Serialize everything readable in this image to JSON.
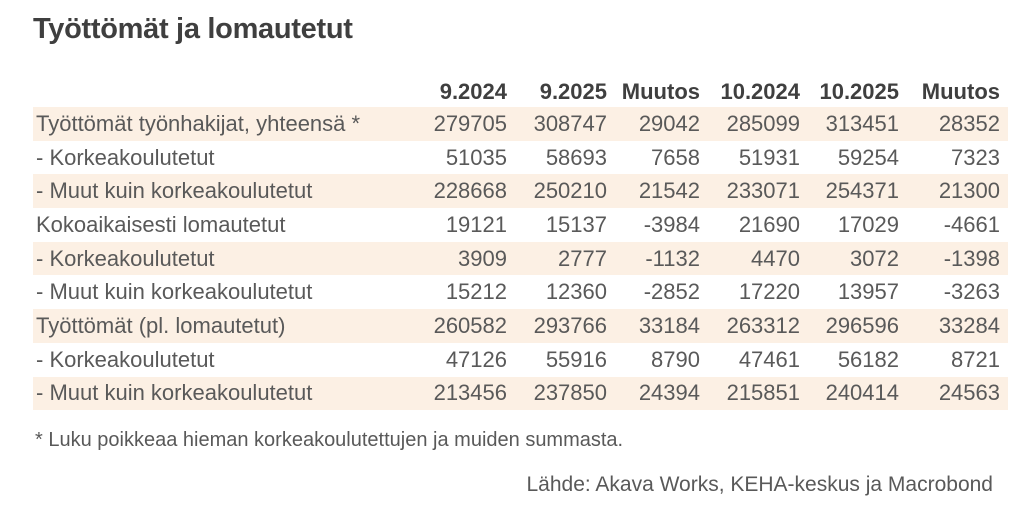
{
  "title": "Työttömät ja lomautetut",
  "footnote": "* Luku poikkeaa hieman korkeakoulutettujen ja muiden summasta.",
  "source": "Lähde: Akava Works, KEHA-keskus ja Macrobond",
  "colors": {
    "background": "#ffffff",
    "stripe": "#fcf0e4",
    "body_text": "#595959",
    "heading_text": "#3f3f3f"
  },
  "chart_data": {
    "type": "table",
    "title": "Työttömät ja lomautetut",
    "columns": [
      "9.2024",
      "9.2025",
      "Muutos",
      "10.2024",
      "10.2025",
      "Muutos"
    ],
    "rows": [
      {
        "label": "Työttömät työnhakijat, yhteensä *",
        "values": [
          279705,
          308747,
          29042,
          285099,
          313451,
          28352
        ]
      },
      {
        "label": "- Korkeakoulutetut",
        "values": [
          51035,
          58693,
          7658,
          51931,
          59254,
          7323
        ]
      },
      {
        "label": "- Muut kuin korkeakoulutetut",
        "values": [
          228668,
          250210,
          21542,
          233071,
          254371,
          21300
        ]
      },
      {
        "label": "Kokoaikaisesti lomautetut",
        "values": [
          19121,
          15137,
          -3984,
          21690,
          17029,
          -4661
        ]
      },
      {
        "label": "- Korkeakoulutetut",
        "values": [
          3909,
          2777,
          -1132,
          4470,
          3072,
          -1398
        ]
      },
      {
        "label": "- Muut kuin korkeakoulutetut",
        "values": [
          15212,
          12360,
          -2852,
          17220,
          13957,
          -3263
        ]
      },
      {
        "label": "Työttömät (pl. lomautetut)",
        "values": [
          260582,
          293766,
          33184,
          263312,
          296596,
          33284
        ]
      },
      {
        "label": "- Korkeakoulutetut",
        "values": [
          47126,
          55916,
          8790,
          47461,
          56182,
          8721
        ]
      },
      {
        "label": "- Muut kuin korkeakoulutetut",
        "values": [
          213456,
          237850,
          24394,
          215851,
          240414,
          24563
        ]
      }
    ],
    "layout": {
      "stripes": "odd-rows-shaded",
      "numbers_alignment": "right",
      "header_style": "bold"
    }
  }
}
